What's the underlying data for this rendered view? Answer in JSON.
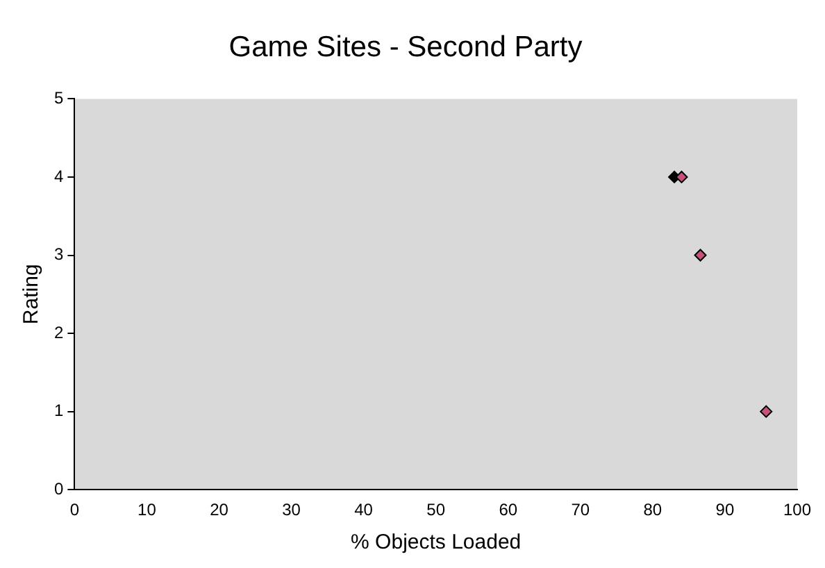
{
  "chart_data": {
    "type": "scatter",
    "title": "Game Sites - Second Party",
    "xlabel": "% Objects Loaded",
    "ylabel": "Rating",
    "x": [
      83.0,
      84.0,
      86.6,
      95.7
    ],
    "values": [
      4,
      4,
      3,
      1
    ],
    "colors": [
      "#000000",
      "#c8507e",
      "#c8507e",
      "#c8507e"
    ],
    "xlim": [
      0,
      100
    ],
    "xticks": [
      0,
      10,
      20,
      30,
      40,
      50,
      60,
      70,
      80,
      90,
      100
    ],
    "ylim": [
      0,
      5
    ],
    "yticks": [
      0,
      1,
      2,
      3,
      4,
      5
    ],
    "marker": "diamond",
    "grid": false,
    "legend": false
  }
}
